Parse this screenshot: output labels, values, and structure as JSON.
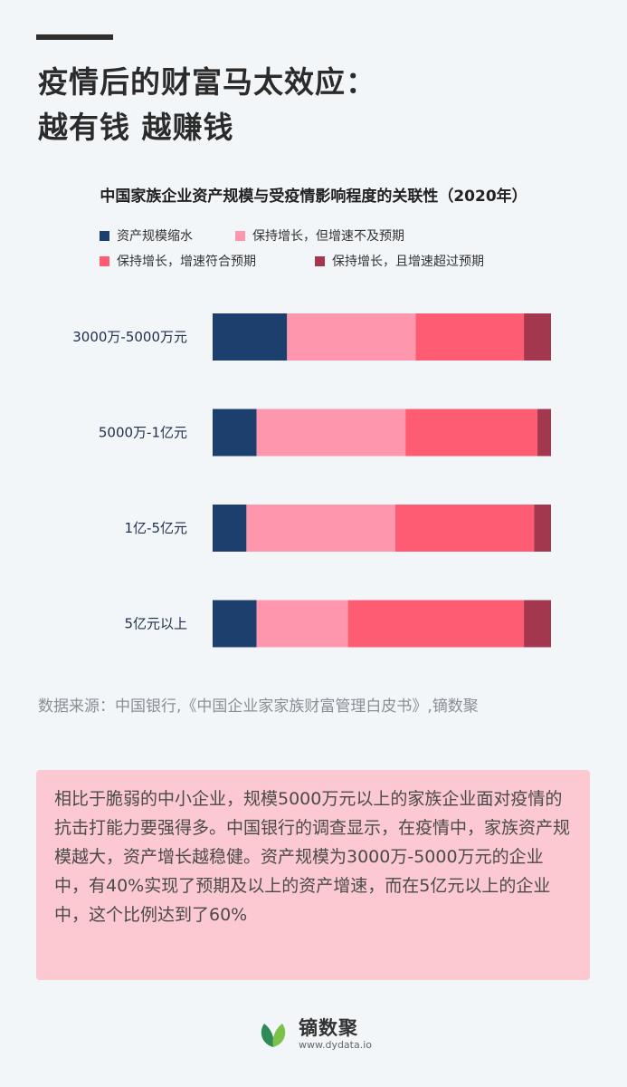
{
  "headline": {
    "line1": "疫情后的财富马太效应：",
    "line2": "越有钱 越赚钱"
  },
  "chart_data": {
    "type": "bar",
    "orientation": "horizontal",
    "stacked": true,
    "normalized": true,
    "title": "中国家族企业资产规模与受疫情影响程度的关联性（2020年）",
    "categories": [
      "3000万-5000万元",
      "5000万-1亿元",
      "1亿-5亿元",
      "5亿元以上"
    ],
    "series": [
      {
        "name": "资产规模缩水",
        "color": "#1c3f6e",
        "values": [
          22,
          13,
          10,
          13
        ]
      },
      {
        "name": "保持增长，但增速不及预期",
        "color": "#fe97ad",
        "values": [
          38,
          44,
          44,
          27
        ]
      },
      {
        "name": "保持增长，增速符合预期",
        "color": "#fe5c72",
        "values": [
          32,
          39,
          41,
          52
        ]
      },
      {
        "name": "保持增长，且增速超过预期",
        "color": "#a2374d",
        "values": [
          8,
          4,
          5,
          8
        ]
      }
    ],
    "xlim": [
      0,
      100
    ],
    "grid": false,
    "legend_position": "top"
  },
  "source": "数据来源：中国银行,《中国企业家家族财富管理白皮书》,镝数聚",
  "note": "相比于脆弱的中小企业，规模5000万元以上的家族企业面对疫情的抗击打能力要强得多。中国银行的调查显示，在疫情中，家族资产规模越大，资产增长越稳健。资产规模为3000万-5000万元的企业中，有40%实现了预期及以上的资产增速，而在5亿元以上的企业中，这个比例达到了60%",
  "footer": {
    "brand": "镝数聚",
    "url": "www.dydata.io",
    "logo_icon": "leaf-icon",
    "logo_colors": [
      "#2e8b57",
      "#7cc24a"
    ]
  }
}
